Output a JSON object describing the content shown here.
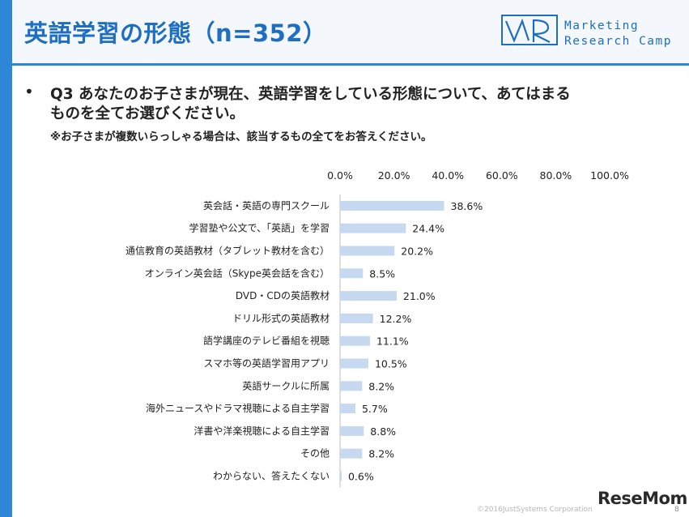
{
  "header": {
    "title": "英語学習の形態（n=352）",
    "logo_line1": "Marketing",
    "logo_line2": "Research Camp"
  },
  "question": {
    "bullet": "•",
    "line1": "Q3 あなたのお子さまが現在、英語学習をしている形態について、あてはまる",
    "line2": "ものを全てお選びください。",
    "note": "※お子さまが複数いらっしゃる場合は、該当するもの全てをお答えください。"
  },
  "chart_data": {
    "type": "bar",
    "orientation": "horizontal",
    "categories": [
      "英会話・英語の専門スクール",
      "学習塾や公文で、「英語」を学習",
      "通信教育の英語教材（タブレット教材を含む）",
      "オンライン英会話（Skype英会話を含む）",
      "DVD・CDの英語教材",
      "ドリル形式の英語教材",
      "語学講座のテレビ番組を視聴",
      "スマホ等の英語学習用アプリ",
      "英語サークルに所属",
      "海外ニュースやドラマ視聴による自主学習",
      "洋書や洋楽視聴による自主学習",
      "その他",
      "わからない、答えたくない"
    ],
    "values": [
      38.6,
      24.4,
      20.2,
      8.5,
      21.0,
      12.2,
      11.1,
      10.5,
      8.2,
      5.7,
      8.8,
      8.2,
      0.6
    ],
    "value_labels": [
      "38.6%",
      "24.4%",
      "20.2%",
      "8.5%",
      "21.0%",
      "12.2%",
      "11.1%",
      "10.5%",
      "8.2%",
      "5.7%",
      "8.8%",
      "8.2%",
      "0.6%"
    ],
    "xticks": [
      "0.0%",
      "20.0%",
      "40.0%",
      "60.0%",
      "80.0%",
      "100.0%"
    ],
    "xlim": [
      0,
      100
    ],
    "axis_position": "top",
    "grid": false,
    "bar_color": "#c6d9f1"
  },
  "footer": {
    "copyright": "©2016JustSystems Corporation",
    "page_number": "8",
    "brand": "ReseMom"
  }
}
